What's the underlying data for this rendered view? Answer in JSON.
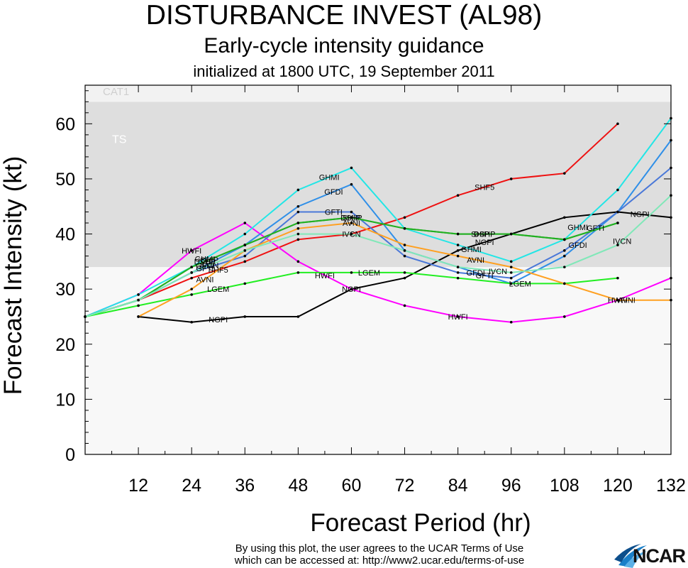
{
  "titles": {
    "main": "DISTURBANCE INVEST (AL98)",
    "sub": "Early-cycle intensity guidance",
    "init": "initialized at 1800 UTC, 19 September 2011"
  },
  "footer": {
    "line1": "By using this plot, the user agrees to the UCAR Terms of Use",
    "line2": "which can be accessed at: http://www2.ucar.edu/terms-of-use"
  },
  "logo": {
    "text": "NCAR",
    "icon": "ncar-swoosh-icon"
  },
  "chart_data": {
    "type": "line",
    "title": "DISTURBANCE INVEST (AL98)",
    "xlabel": "Forecast Period (hr)",
    "ylabel": "Forecast Intensity (kt)",
    "xlim": [
      0,
      132
    ],
    "ylim": [
      0,
      67
    ],
    "xticks": [
      12,
      24,
      36,
      48,
      60,
      72,
      84,
      96,
      108,
      120,
      132
    ],
    "yticks": [
      0,
      10,
      20,
      30,
      40,
      50,
      60
    ],
    "grid": false,
    "bands": [
      {
        "label": "",
        "from": 0,
        "to": 34,
        "color": "#f8f8f8"
      },
      {
        "label": "TS",
        "from": 34,
        "to": 64,
        "color": "#dedede"
      },
      {
        "label": "CAT1",
        "from": 64,
        "to": 67,
        "color": "#f2f2f2"
      }
    ],
    "series": [
      {
        "name": "NGPI",
        "color": "#000000",
        "x": [
          12,
          24,
          36,
          48,
          60,
          72,
          84,
          96,
          108,
          120,
          132
        ],
        "y": [
          25,
          24,
          25,
          25,
          30,
          32,
          37,
          40,
          43,
          44,
          43
        ],
        "labels_at": [
          30,
          60,
          90,
          125
        ]
      },
      {
        "name": "SHF5",
        "color": "#ee1111",
        "x": [
          0,
          12,
          24,
          36,
          48,
          60,
          72,
          84,
          96,
          108,
          120
        ],
        "y": [
          25,
          28,
          32,
          35,
          39,
          40,
          43,
          47,
          50,
          51,
          60
        ],
        "labels_at": [
          30,
          90
        ]
      },
      {
        "name": "HWFI",
        "color": "#ff00ff",
        "x": [
          0,
          12,
          24,
          36,
          48,
          60,
          72,
          84,
          96,
          108,
          120,
          132
        ],
        "y": [
          25,
          29,
          37,
          42,
          35,
          30,
          27,
          25,
          24,
          25,
          28,
          32
        ],
        "labels_at": [
          24,
          54,
          84,
          120
        ]
      },
      {
        "name": "GHMI",
        "color": "#22e6e6",
        "x": [
          0,
          12,
          24,
          36,
          48,
          60,
          72,
          84,
          96,
          108,
          120,
          132
        ],
        "y": [
          25,
          29,
          34,
          40,
          48,
          52,
          41,
          38,
          35,
          39,
          48,
          61
        ],
        "labels_at": [
          27,
          55,
          87,
          111
        ]
      },
      {
        "name": "GFDI",
        "color": "#2f8fe8",
        "x": [
          0,
          12,
          24,
          36,
          48,
          60,
          72,
          84,
          96,
          108,
          120,
          132
        ],
        "y": [
          25,
          28,
          33,
          38,
          45,
          49,
          37,
          34,
          31,
          36,
          44,
          57
        ],
        "labels_at": [
          27,
          56,
          88,
          111
        ]
      },
      {
        "name": "GFTI",
        "color": "#4a78d8",
        "x": [
          0,
          12,
          24,
          36,
          48,
          60,
          72,
          84,
          96,
          108,
          120,
          132
        ],
        "y": [
          25,
          28,
          33,
          36,
          44,
          44,
          36,
          33,
          32,
          37,
          44,
          52
        ],
        "labels_at": [
          27,
          56,
          90,
          115
        ]
      },
      {
        "name": "DSHP",
        "color": "#22b022",
        "x": [
          0,
          12,
          24,
          36,
          48,
          60,
          72,
          84,
          96,
          108,
          120
        ],
        "y": [
          25,
          28,
          34,
          38,
          42,
          43,
          41,
          40,
          40,
          39,
          42
        ],
        "labels_at": [
          27,
          60,
          90
        ]
      },
      {
        "name": "SHIP",
        "color": "#22b022",
        "x": [
          0,
          12,
          24,
          36,
          48,
          60,
          72,
          84,
          96,
          108,
          120
        ],
        "y": [
          25,
          28,
          34,
          38,
          42,
          43,
          41,
          40,
          40,
          39,
          42
        ],
        "labels_at": [
          28,
          60,
          89
        ]
      },
      {
        "name": "LGEM",
        "color": "#22ee22",
        "x": [
          0,
          12,
          24,
          36,
          48,
          60,
          72,
          84,
          96,
          108,
          120
        ],
        "y": [
          25,
          27,
          29,
          31,
          33,
          33,
          33,
          32,
          31,
          31,
          32
        ],
        "labels_at": [
          30,
          64,
          98
        ]
      },
      {
        "name": "AVNI",
        "color": "#ffa020",
        "x": [
          12,
          24,
          36,
          48,
          60,
          72,
          84,
          96,
          108,
          120,
          132
        ],
        "y": [
          25,
          30,
          37,
          41,
          42,
          38,
          36,
          34,
          31,
          28,
          28
        ],
        "labels_at": [
          27,
          60,
          88,
          122
        ]
      },
      {
        "name": "IVCN",
        "color": "#80e8b8",
        "x": [
          0,
          12,
          24,
          36,
          48,
          60,
          72,
          84,
          96,
          108,
          120,
          132
        ],
        "y": [
          25,
          28,
          33,
          37,
          40,
          40,
          37,
          34,
          33,
          34,
          38,
          47
        ],
        "labels_at": [
          28,
          60,
          93,
          121
        ]
      }
    ]
  }
}
